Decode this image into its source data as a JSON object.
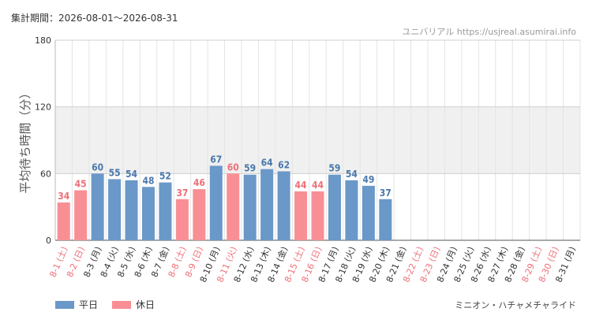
{
  "header": {
    "period": "集計期間：2026-08-01～2026-08-31",
    "source": "ユニバリアル https://usjreal.asumirai.info"
  },
  "footer": {
    "attraction": "ミニオン・ハチャメチャライド"
  },
  "colors": {
    "weekday": "#6a98c8",
    "holiday": "#f88f95",
    "weekday_label": "#4a78ac",
    "holiday_label": "#ee7078",
    "holiday_tick": "#ee7078",
    "band": "#f0f0f0",
    "grid": "#e4e4e4"
  },
  "chart_data": {
    "type": "bar",
    "title": "",
    "xlabel": "",
    "ylabel": "平均待ち時間（分）",
    "ylim": [
      0,
      180
    ],
    "yticks": [
      0,
      60,
      120,
      180
    ],
    "shaded_band": [
      60,
      120
    ],
    "legend": [
      "平日",
      "休日"
    ],
    "legend_position": "bottom-left",
    "categories": [
      "8-1 (土)",
      "8-2 (日)",
      "8-3 (月)",
      "8-4 (火)",
      "8-5 (水)",
      "8-6 (木)",
      "8-7 (金)",
      "8-8 (土)",
      "8-9 (日)",
      "8-10 (月)",
      "8-11 (火)",
      "8-12 (水)",
      "8-13 (木)",
      "8-14 (金)",
      "8-15 (土)",
      "8-16 (日)",
      "8-17 (月)",
      "8-18 (火)",
      "8-19 (水)",
      "8-20 (木)",
      "8-21 (金)",
      "8-22 (土)",
      "8-23 (日)",
      "8-24 (月)",
      "8-25 (火)",
      "8-26 (水)",
      "8-27 (木)",
      "8-28 (金)",
      "8-29 (土)",
      "8-30 (日)",
      "8-31 (月)"
    ],
    "day_type": [
      "休日",
      "休日",
      "平日",
      "平日",
      "平日",
      "平日",
      "平日",
      "休日",
      "休日",
      "平日",
      "休日",
      "平日",
      "平日",
      "平日",
      "休日",
      "休日",
      "平日",
      "平日",
      "平日",
      "平日",
      "平日",
      "休日",
      "休日",
      "平日",
      "平日",
      "平日",
      "平日",
      "平日",
      "休日",
      "休日",
      "平日"
    ],
    "values": [
      34,
      45,
      60,
      55,
      54,
      48,
      52,
      37,
      46,
      67,
      60,
      59,
      64,
      62,
      44,
      44,
      59,
      54,
      49,
      37,
      null,
      null,
      null,
      null,
      null,
      null,
      null,
      null,
      null,
      null,
      null
    ]
  }
}
